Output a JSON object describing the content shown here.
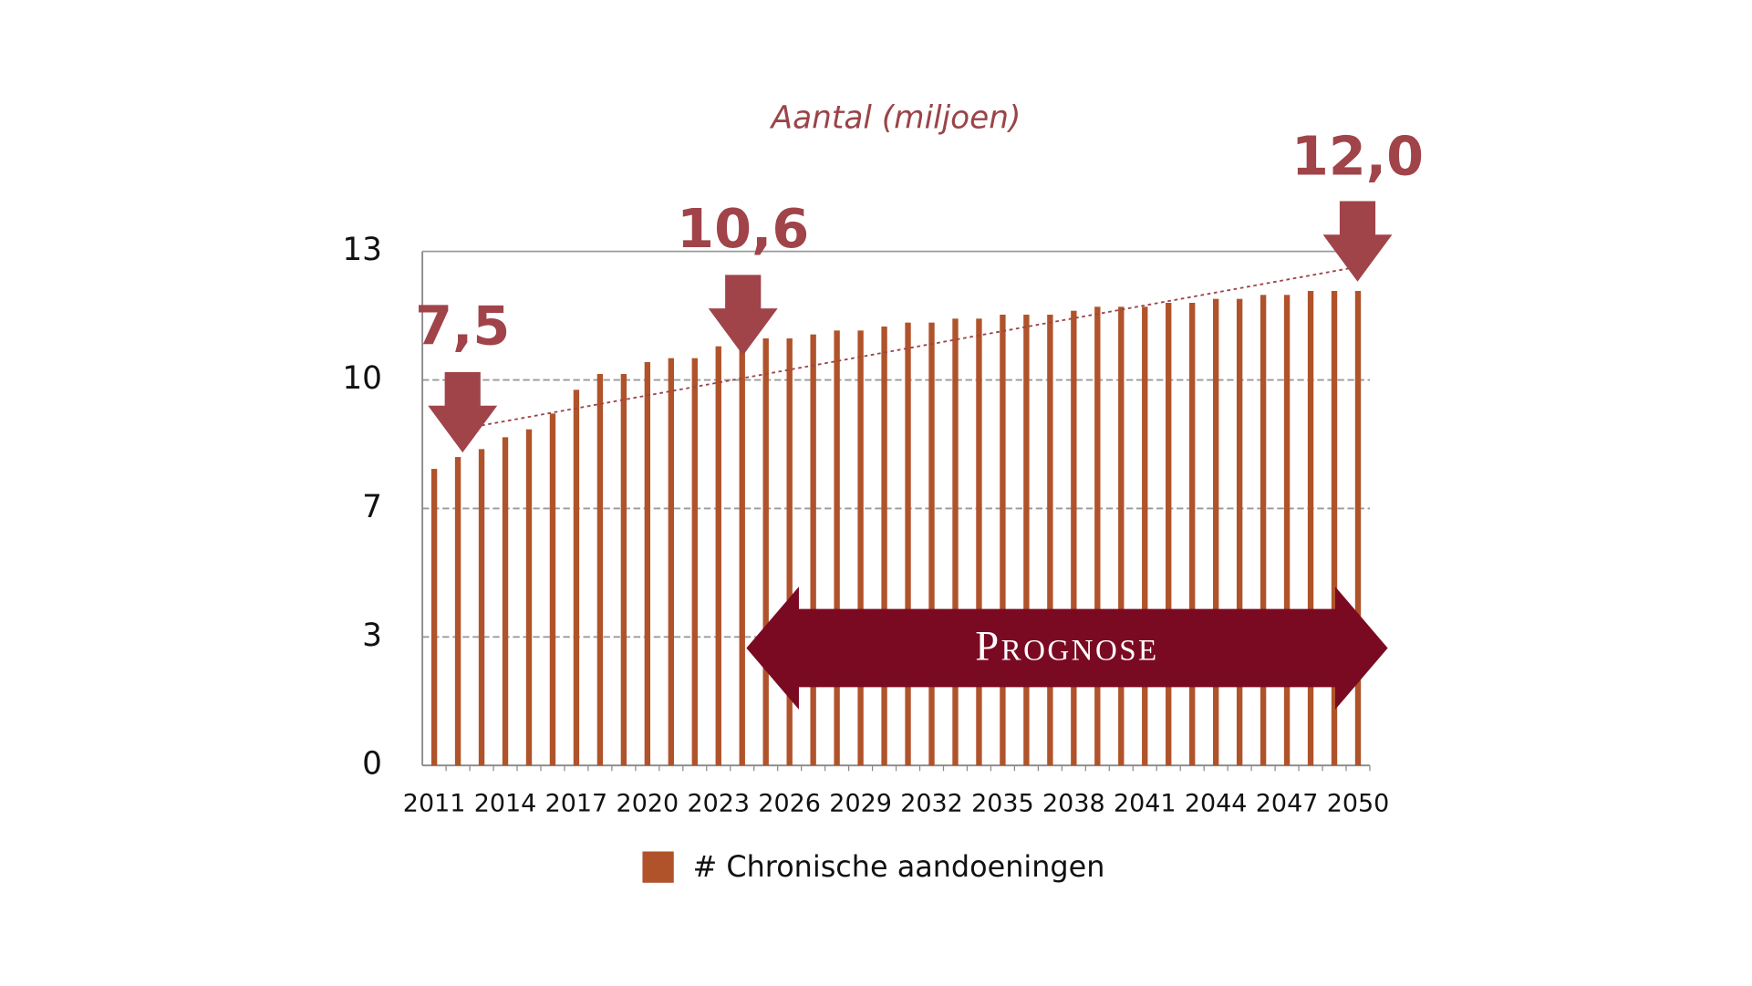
{
  "chart_data": {
    "type": "bar",
    "title": "Aantal (miljoen)",
    "categories": [
      "2011",
      null,
      null,
      "2014",
      null,
      null,
      "2017",
      null,
      null,
      "2020",
      null,
      null,
      "2023",
      null,
      null,
      "2026",
      null,
      null,
      "2029",
      null,
      null,
      "2032",
      null,
      null,
      "2035",
      null,
      null,
      "2038",
      null,
      null,
      "2041",
      null,
      null,
      "2044",
      null,
      null,
      "2047",
      null,
      null,
      "2050"
    ],
    "series": [
      {
        "name": "# Chronische aandoeningen",
        "color": "#b0532b",
        "values": [
          7.5,
          7.8,
          8.0,
          8.3,
          8.5,
          8.9,
          9.5,
          9.9,
          9.9,
          10.2,
          10.3,
          10.3,
          10.6,
          10.7,
          10.8,
          10.8,
          10.9,
          11.0,
          11.0,
          11.1,
          11.2,
          11.2,
          11.3,
          11.3,
          11.4,
          11.4,
          11.4,
          11.5,
          11.6,
          11.6,
          11.6,
          11.7,
          11.7,
          11.8,
          11.8,
          11.9,
          11.9,
          12.0,
          12.0,
          12.0
        ]
      }
    ],
    "ylim": [
      0,
      13
    ],
    "yticks": [
      0,
      {
        "value": 3.25,
        "label": "3"
      },
      {
        "value": 6.5,
        "label": "7"
      },
      {
        "value": 9.75,
        "label": "10"
      },
      13
    ],
    "grid": true,
    "annotations": [
      "7,5",
      "10,6",
      "12,0"
    ],
    "banner": "Prognose"
  }
}
